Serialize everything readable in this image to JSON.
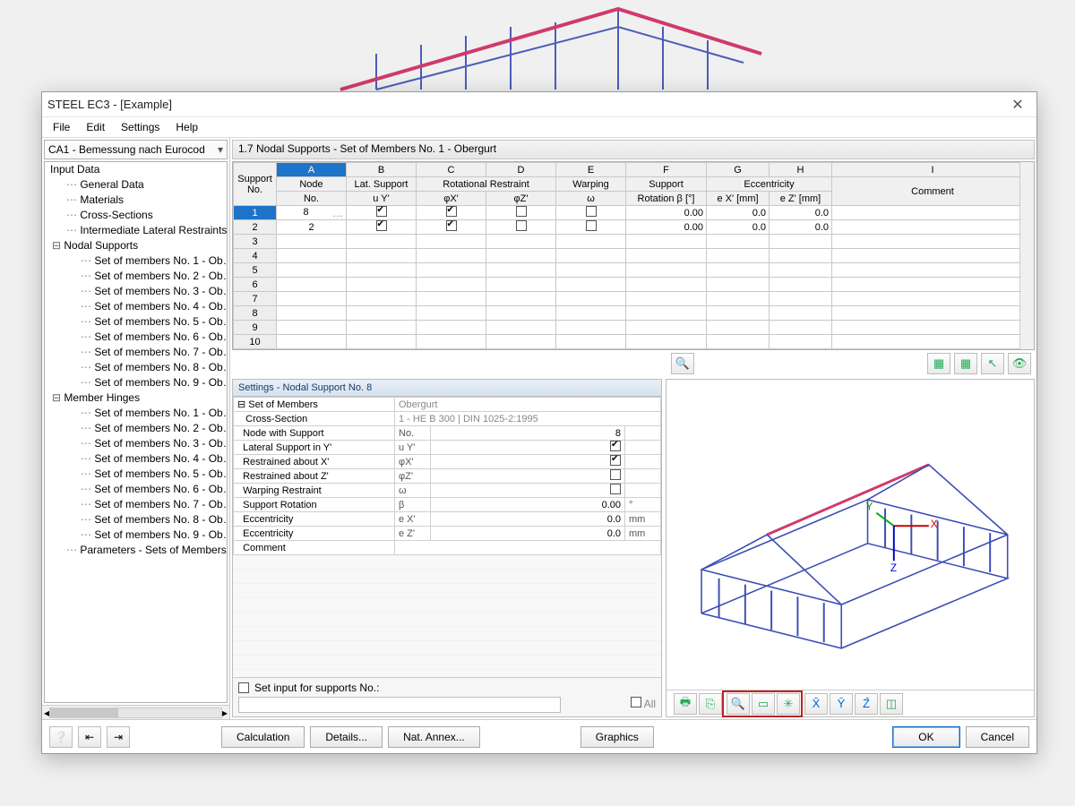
{
  "window": {
    "title": "STEEL EC3 - [Example]"
  },
  "menu": {
    "file": "File",
    "edit": "Edit",
    "settings": "Settings",
    "help": "Help"
  },
  "combo": {
    "text": "CA1 - Bemessung nach Eurocod"
  },
  "tree": {
    "root": "Input Data",
    "general": "General Data",
    "materials": "Materials",
    "cross": "Cross-Sections",
    "ilr": "Intermediate Lateral Restraints",
    "nodal": "Nodal Supports",
    "hinges": "Member Hinges",
    "params": "Parameters - Sets of Members",
    "setPrefix": "Set of members No. ",
    "setSuffix": " - Ob…",
    "setCount": 9
  },
  "panel": {
    "title": "1.7 Nodal Supports - Set of Members No. 1 - Obergurt"
  },
  "grid": {
    "letters": [
      "A",
      "B",
      "C",
      "D",
      "E",
      "F",
      "G",
      "H",
      "I"
    ],
    "group1": {
      "support": "Support",
      "no": "No."
    },
    "group2": {
      "node": "Node",
      "no": "No."
    },
    "group3": {
      "lat": "Lat. Support",
      "uy": "u Y'"
    },
    "group4": {
      "rot": "Rotational Restraint",
      "phix": "φX'",
      "phiz": "φZ'"
    },
    "group5": {
      "warp": "Warping",
      "omega": "ω"
    },
    "group6": {
      "supRot": "Support",
      "rotb": "Rotation β [°]"
    },
    "group7": {
      "ecc": "Eccentricity",
      "ex": "e X' [mm]",
      "ez": "e Z' [mm]"
    },
    "group8": {
      "comment": "Comment"
    },
    "rows": [
      {
        "no": "1",
        "node": "8",
        "uy": true,
        "phix": true,
        "phiz": false,
        "omega": false,
        "beta": "0.00",
        "ex": "0.0",
        "ez": "0.0",
        "sel": true
      },
      {
        "no": "2",
        "node": "2",
        "uy": true,
        "phix": true,
        "phiz": false,
        "omega": false,
        "beta": "0.00",
        "ex": "0.0",
        "ez": "0.0",
        "sel": false
      }
    ],
    "emptyRows": [
      "3",
      "4",
      "5",
      "6",
      "7",
      "8",
      "9",
      "10"
    ]
  },
  "settings": {
    "title": "Settings - Nodal Support No. 8",
    "setOfMembers": {
      "k": "Set of Members",
      "v": "Obergurt"
    },
    "crossSection": {
      "k": "Cross-Section",
      "v": "1 - HE B 300 | DIN 1025-2:1995"
    },
    "nodeWithSupport": {
      "k": "Node with Support",
      "s": "No.",
      "v": "8"
    },
    "latY": {
      "k": "Lateral Support in Y'",
      "s": "u Y'",
      "chk": true
    },
    "restrX": {
      "k": "Restrained about X'",
      "s": "φX'",
      "chk": true
    },
    "restrZ": {
      "k": "Restrained about Z'",
      "s": "φZ'",
      "chk": false
    },
    "warp": {
      "k": "Warping Restraint",
      "s": "ω",
      "chk": false
    },
    "supRot": {
      "k": "Support Rotation",
      "s": "β",
      "v": "0.00",
      "u": "°"
    },
    "eccX": {
      "k": "Eccentricity",
      "s": "e X'",
      "v": "0.0",
      "u": "mm"
    },
    "eccZ": {
      "k": "Eccentricity",
      "s": "e Z'",
      "v": "0.0",
      "u": "mm"
    },
    "comment": {
      "k": "Comment"
    },
    "setInputLabel": "Set input for supports No.:",
    "allLabel": "All"
  },
  "footer": {
    "calc": "Calculation",
    "details": "Details...",
    "nat": "Nat. Annex...",
    "graphics": "Graphics",
    "ok": "OK",
    "cancel": "Cancel"
  },
  "colors": {
    "accent": "#1e74c8",
    "steel": "#3b4db5",
    "roof": "#d03a6a"
  }
}
